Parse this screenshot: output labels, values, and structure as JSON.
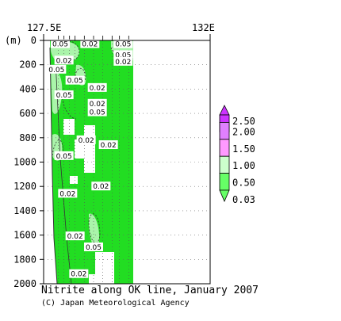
{
  "chart_data": {
    "type": "heatmap",
    "title": "Nitrite along OK line, January 2007",
    "credit": "(C) Japan Meteorological Agency",
    "xlabel": "",
    "ylabel": "(m)",
    "x_ticks_top": [
      "127.5E",
      "132E"
    ],
    "xlim": [
      127.5,
      132
    ],
    "ylim": [
      2000,
      0
    ],
    "y_ticks": [
      0,
      200,
      400,
      600,
      800,
      1000,
      1200,
      1400,
      1600,
      1800,
      2000
    ],
    "grid": "dotted",
    "colorbar": {
      "levels": [
        "2.50",
        "2.00",
        "1.50",
        "1.00",
        "0.50",
        "0.03"
      ],
      "colors": [
        "#cc33ff",
        "#e080ff",
        "#ff99ff",
        "#ccffcc",
        "#66ff66"
      ],
      "placement": "right"
    },
    "contour_labels": [
      {
        "text": "0.05",
        "lon": 127.95,
        "depth": 30
      },
      {
        "text": "0.02",
        "lon": 128.75,
        "depth": 30
      },
      {
        "text": "0.05",
        "lon": 129.65,
        "depth": 30
      },
      {
        "text": "0.05",
        "lon": 129.65,
        "depth": 120
      },
      {
        "text": "0.02",
        "lon": 129.65,
        "depth": 175
      },
      {
        "text": "0.02",
        "lon": 128.05,
        "depth": 165
      },
      {
        "text": "0.05",
        "lon": 127.85,
        "depth": 240
      },
      {
        "text": "0.05",
        "lon": 128.35,
        "depth": 330
      },
      {
        "text": "0.02",
        "lon": 128.95,
        "depth": 390
      },
      {
        "text": "0.05",
        "lon": 128.05,
        "depth": 450
      },
      {
        "text": "0.02",
        "lon": 128.95,
        "depth": 520
      },
      {
        "text": "0.05",
        "lon": 128.95,
        "depth": 590
      },
      {
        "text": "0.02",
        "lon": 128.65,
        "depth": 820
      },
      {
        "text": "0.02",
        "lon": 129.25,
        "depth": 860
      },
      {
        "text": "0.05",
        "lon": 128.05,
        "depth": 950
      },
      {
        "text": "0.02",
        "lon": 129.05,
        "depth": 1200
      },
      {
        "text": "0.02",
        "lon": 128.15,
        "depth": 1260
      },
      {
        "text": "0.02",
        "lon": 128.35,
        "depth": 1610
      },
      {
        "text": "0.05",
        "lon": 128.85,
        "depth": 1700
      },
      {
        "text": "0.02",
        "lon": 128.45,
        "depth": 1920
      }
    ],
    "station_lons": [
      127.9,
      128.05,
      128.2,
      128.35,
      128.6,
      128.85,
      129.1,
      129.35,
      129.55,
      129.8
    ]
  }
}
